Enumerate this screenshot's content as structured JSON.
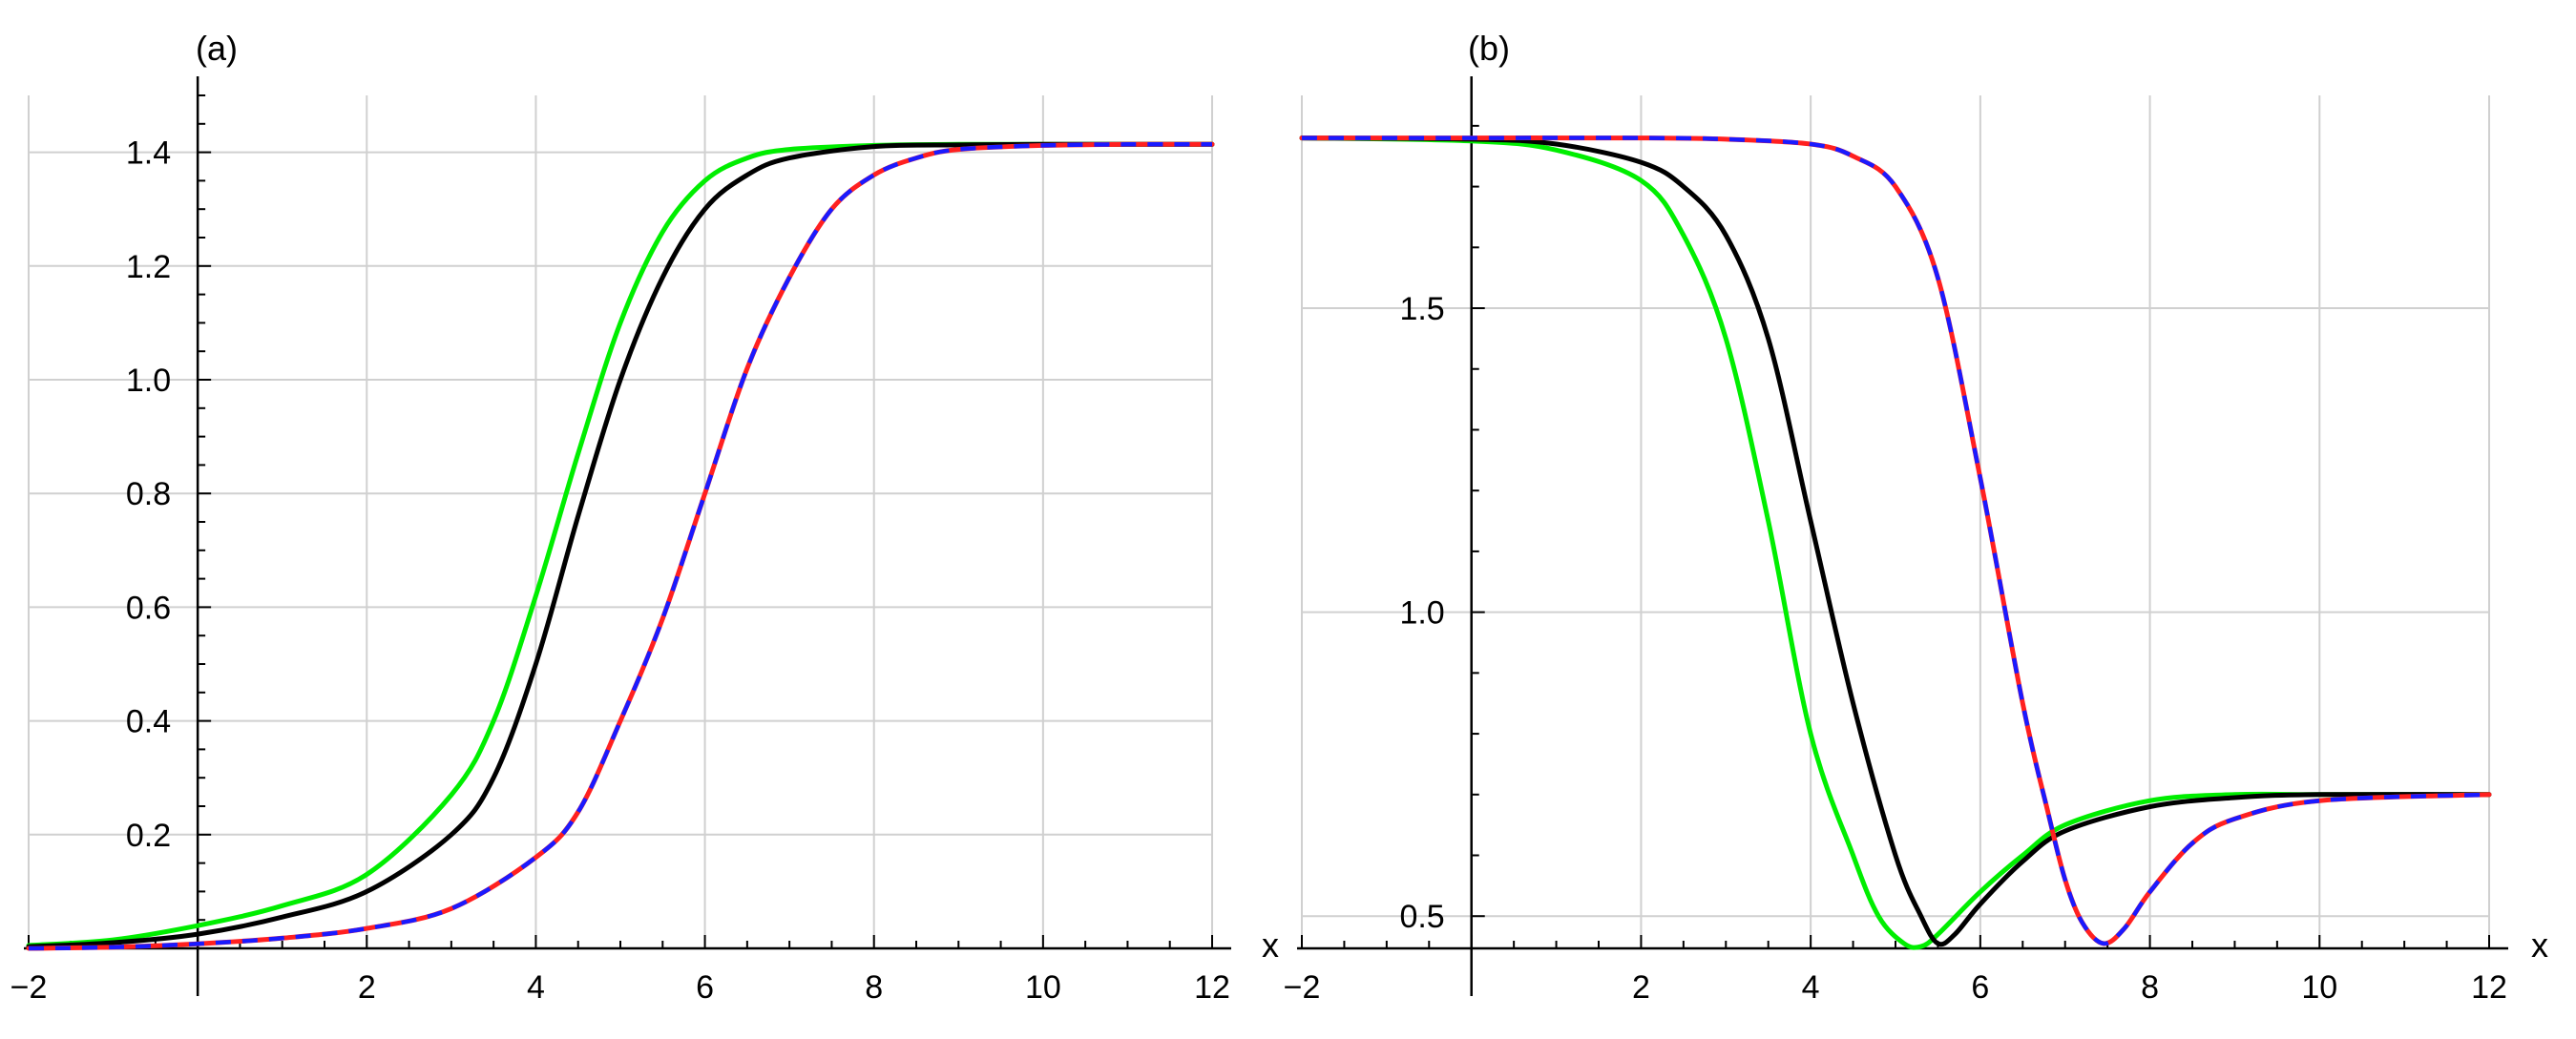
{
  "chart_data": [
    {
      "type": "line",
      "panel_label": "(a)",
      "xlabel": "x",
      "ylabel": "",
      "xlim": [
        -2,
        12
      ],
      "ylim": [
        0,
        1.5
      ],
      "xticks": [
        "−2",
        "2",
        "4",
        "6",
        "8",
        "10",
        "12"
      ],
      "yticks": [
        "0.2",
        "0.4",
        "0.6",
        "0.8",
        "1.0",
        "1.2",
        "1.4"
      ],
      "grid": true,
      "series": [
        {
          "color": "#00ee00",
          "style": "solid",
          "x": [
            -2,
            -1,
            0,
            1,
            2,
            3,
            3.5,
            4,
            4.5,
            5,
            5.5,
            6,
            6.5,
            7,
            8,
            9,
            10,
            11,
            12
          ],
          "y": [
            0.005,
            0.015,
            0.04,
            0.075,
            0.13,
            0.27,
            0.4,
            0.62,
            0.87,
            1.1,
            1.26,
            1.35,
            1.39,
            1.405,
            1.412,
            1.414,
            1.414,
            1.414,
            1.414
          ]
        },
        {
          "color": "#000000",
          "style": "solid",
          "x": [
            -2,
            -1,
            0,
            1,
            2,
            3,
            3.5,
            4,
            4.5,
            5,
            5.5,
            6,
            6.5,
            7,
            8,
            9,
            10,
            11,
            12
          ],
          "y": [
            0.003,
            0.01,
            0.025,
            0.055,
            0.1,
            0.2,
            0.3,
            0.5,
            0.76,
            1.0,
            1.18,
            1.3,
            1.36,
            1.39,
            1.41,
            1.413,
            1.414,
            1.414,
            1.414
          ]
        },
        {
          "color": "#ff2020",
          "style": "solid",
          "x": [
            -2,
            -1,
            0,
            1,
            2,
            3,
            4,
            4.5,
            5,
            5.5,
            6,
            6.5,
            7,
            7.5,
            8,
            8.5,
            9,
            10,
            11,
            12
          ],
          "y": [
            0.0,
            0.002,
            0.008,
            0.018,
            0.035,
            0.07,
            0.16,
            0.24,
            0.4,
            0.58,
            0.8,
            1.02,
            1.18,
            1.3,
            1.36,
            1.39,
            1.405,
            1.412,
            1.414,
            1.414
          ]
        },
        {
          "color": "#1a1aff",
          "style": "dashed",
          "x": [
            -2,
            -1,
            0,
            1,
            2,
            3,
            4,
            4.5,
            5,
            5.5,
            6,
            6.5,
            7,
            7.5,
            8,
            8.5,
            9,
            10,
            11,
            12
          ],
          "y": [
            0.0,
            0.002,
            0.008,
            0.018,
            0.035,
            0.07,
            0.16,
            0.24,
            0.4,
            0.58,
            0.8,
            1.02,
            1.18,
            1.3,
            1.36,
            1.39,
            1.405,
            1.412,
            1.414,
            1.414
          ]
        }
      ]
    },
    {
      "type": "line",
      "panel_label": "(b)",
      "xlabel": "x",
      "ylabel": "",
      "xlim": [
        -2,
        12
      ],
      "ylim": [
        0.447,
        1.85
      ],
      "xticks": [
        "−2",
        "2",
        "4",
        "6",
        "8",
        "10",
        "12"
      ],
      "yticks": [
        "0.5",
        "1.0",
        "1.5"
      ],
      "grid": true,
      "series": [
        {
          "color": "#00ee00",
          "style": "solid",
          "x": [
            -2,
            0,
            1,
            2,
            2.5,
            3,
            3.5,
            4,
            4.5,
            4.8,
            5.1,
            5.3,
            5.5,
            6,
            6.5,
            7,
            8,
            9,
            10,
            12
          ],
          "y": [
            1.78,
            1.775,
            1.76,
            1.71,
            1.62,
            1.45,
            1.15,
            0.8,
            0.6,
            0.5,
            0.455,
            0.45,
            0.47,
            0.54,
            0.6,
            0.65,
            0.69,
            0.7,
            0.7,
            0.7
          ]
        },
        {
          "color": "#000000",
          "style": "solid",
          "x": [
            -2,
            0,
            1,
            2,
            2.5,
            3,
            3.5,
            4,
            4.5,
            5,
            5.3,
            5.5,
            5.7,
            6,
            6.5,
            7,
            8,
            9,
            10,
            12
          ],
          "y": [
            1.78,
            1.778,
            1.77,
            1.74,
            1.7,
            1.62,
            1.45,
            1.15,
            0.85,
            0.6,
            0.5,
            0.455,
            0.47,
            0.52,
            0.59,
            0.64,
            0.68,
            0.695,
            0.7,
            0.7
          ]
        },
        {
          "color": "#ff2020",
          "style": "solid",
          "x": [
            -2,
            0,
            2,
            3,
            4,
            4.5,
            5,
            5.5,
            6,
            6.5,
            6.8,
            7,
            7.2,
            7.45,
            7.7,
            8,
            8.5,
            9,
            10,
            12
          ],
          "y": [
            1.78,
            1.78,
            1.78,
            1.778,
            1.77,
            1.75,
            1.7,
            1.55,
            1.22,
            0.85,
            0.67,
            0.56,
            0.49,
            0.455,
            0.48,
            0.54,
            0.62,
            0.66,
            0.69,
            0.7
          ]
        },
        {
          "color": "#1a1aff",
          "style": "dashed",
          "x": [
            -2,
            0,
            2,
            3,
            4,
            4.5,
            5,
            5.5,
            6,
            6.5,
            6.8,
            7,
            7.2,
            7.45,
            7.7,
            8,
            8.5,
            9,
            10,
            12
          ],
          "y": [
            1.78,
            1.78,
            1.78,
            1.778,
            1.77,
            1.75,
            1.7,
            1.55,
            1.22,
            0.85,
            0.67,
            0.56,
            0.49,
            0.455,
            0.48,
            0.54,
            0.62,
            0.66,
            0.69,
            0.7
          ]
        }
      ]
    }
  ]
}
